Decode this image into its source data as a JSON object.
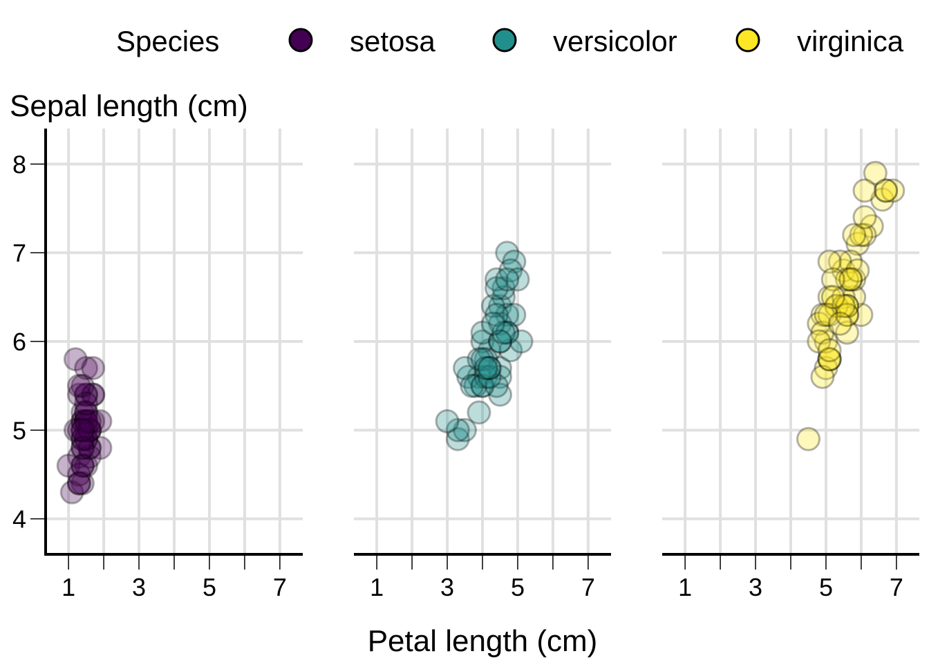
{
  "chart_data": {
    "type": "scatter",
    "facets": [
      "setosa",
      "versicolor",
      "virginica"
    ],
    "xlabel": "Petal length (cm)",
    "ylabel": "Sepal length (cm)",
    "xlim": [
      0.35,
      7.65
    ],
    "ylim": [
      3.6,
      8.4
    ],
    "xticks": [
      1,
      3,
      5,
      7
    ],
    "xminor": [
      2,
      4,
      6
    ],
    "yticks": [
      4,
      5,
      6,
      7,
      8
    ],
    "grid": true,
    "point_alpha": 0.3,
    "legend": {
      "title": "Species",
      "position": "top",
      "entries": [
        {
          "label": "setosa",
          "color": "#440154"
        },
        {
          "label": "versicolor",
          "color": "#21908C"
        },
        {
          "label": "virginica",
          "color": "#FDE725"
        }
      ]
    },
    "series": [
      {
        "name": "setosa",
        "color": "#440154",
        "x": [
          1.4,
          1.4,
          1.3,
          1.5,
          1.4,
          1.7,
          1.4,
          1.5,
          1.4,
          1.5,
          1.5,
          1.6,
          1.4,
          1.1,
          1.2,
          1.5,
          1.3,
          1.4,
          1.7,
          1.5,
          1.7,
          1.5,
          1.0,
          1.7,
          1.9,
          1.6,
          1.6,
          1.5,
          1.4,
          1.6,
          1.6,
          1.5,
          1.5,
          1.4,
          1.5,
          1.2,
          1.3,
          1.4,
          1.3,
          1.5,
          1.3,
          1.3,
          1.3,
          1.6,
          1.9,
          1.4,
          1.6,
          1.4,
          1.5,
          1.4
        ],
        "y": [
          5.1,
          4.9,
          4.7,
          4.6,
          5.0,
          5.4,
          4.6,
          5.0,
          4.4,
          4.9,
          5.4,
          4.8,
          4.8,
          4.3,
          5.8,
          5.7,
          5.4,
          5.1,
          5.7,
          5.1,
          5.4,
          5.1,
          4.6,
          5.1,
          4.8,
          5.0,
          5.0,
          5.2,
          5.2,
          4.7,
          4.8,
          5.4,
          5.2,
          5.5,
          4.9,
          5.0,
          5.5,
          4.9,
          4.4,
          5.1,
          5.0,
          4.5,
          4.4,
          5.0,
          5.1,
          4.8,
          5.1,
          4.6,
          5.3,
          5.0
        ]
      },
      {
        "name": "versicolor",
        "color": "#21908C",
        "x": [
          4.7,
          4.5,
          4.9,
          4.0,
          4.6,
          4.5,
          4.7,
          3.3,
          4.6,
          3.9,
          3.5,
          4.2,
          4.0,
          4.7,
          3.6,
          4.4,
          4.5,
          4.1,
          4.5,
          3.9,
          4.8,
          4.0,
          4.9,
          4.7,
          4.3,
          4.4,
          4.8,
          5.0,
          4.5,
          3.5,
          3.8,
          3.7,
          3.9,
          5.1,
          4.5,
          4.5,
          4.7,
          4.4,
          4.1,
          4.0,
          4.4,
          4.6,
          4.0,
          3.3,
          4.2,
          4.2,
          4.2,
          4.3,
          3.0,
          4.1
        ],
        "y": [
          7.0,
          6.4,
          6.9,
          5.5,
          6.5,
          5.7,
          6.3,
          4.9,
          6.6,
          5.2,
          5.0,
          5.9,
          6.0,
          6.1,
          5.6,
          6.7,
          5.6,
          5.8,
          6.2,
          5.6,
          5.9,
          6.1,
          6.3,
          6.1,
          6.4,
          6.6,
          6.8,
          6.7,
          6.0,
          5.7,
          5.5,
          5.5,
          5.8,
          6.0,
          5.4,
          6.0,
          6.7,
          6.3,
          5.6,
          5.5,
          5.5,
          6.1,
          5.8,
          5.0,
          5.6,
          5.7,
          5.7,
          6.2,
          5.1,
          5.7
        ]
      },
      {
        "name": "virginica",
        "color": "#FDE725",
        "x": [
          6.0,
          5.1,
          5.9,
          5.6,
          5.8,
          6.6,
          4.5,
          6.3,
          5.8,
          6.1,
          5.1,
          5.3,
          5.5,
          5.0,
          5.1,
          5.3,
          5.5,
          6.7,
          6.9,
          5.0,
          5.7,
          4.9,
          6.7,
          4.9,
          5.7,
          6.0,
          4.8,
          4.9,
          5.6,
          5.8,
          6.1,
          6.4,
          5.6,
          5.1,
          5.6,
          6.1,
          5.6,
          5.5,
          4.8,
          5.4,
          5.6,
          5.1,
          5.1,
          5.9,
          5.7,
          5.2,
          5.0,
          5.2,
          5.4,
          5.1
        ],
        "y": [
          6.3,
          5.8,
          7.1,
          6.3,
          6.5,
          7.6,
          4.9,
          7.3,
          6.7,
          7.2,
          6.5,
          6.4,
          6.8,
          5.7,
          5.8,
          6.4,
          6.5,
          7.7,
          7.7,
          6.0,
          6.9,
          5.6,
          7.7,
          6.3,
          6.7,
          7.2,
          6.2,
          6.1,
          6.4,
          7.2,
          7.4,
          7.9,
          6.4,
          6.3,
          6.1,
          7.7,
          6.3,
          6.4,
          6.0,
          6.9,
          6.7,
          6.9,
          5.8,
          6.8,
          6.7,
          6.7,
          6.3,
          6.5,
          6.2,
          5.9
        ]
      }
    ]
  }
}
